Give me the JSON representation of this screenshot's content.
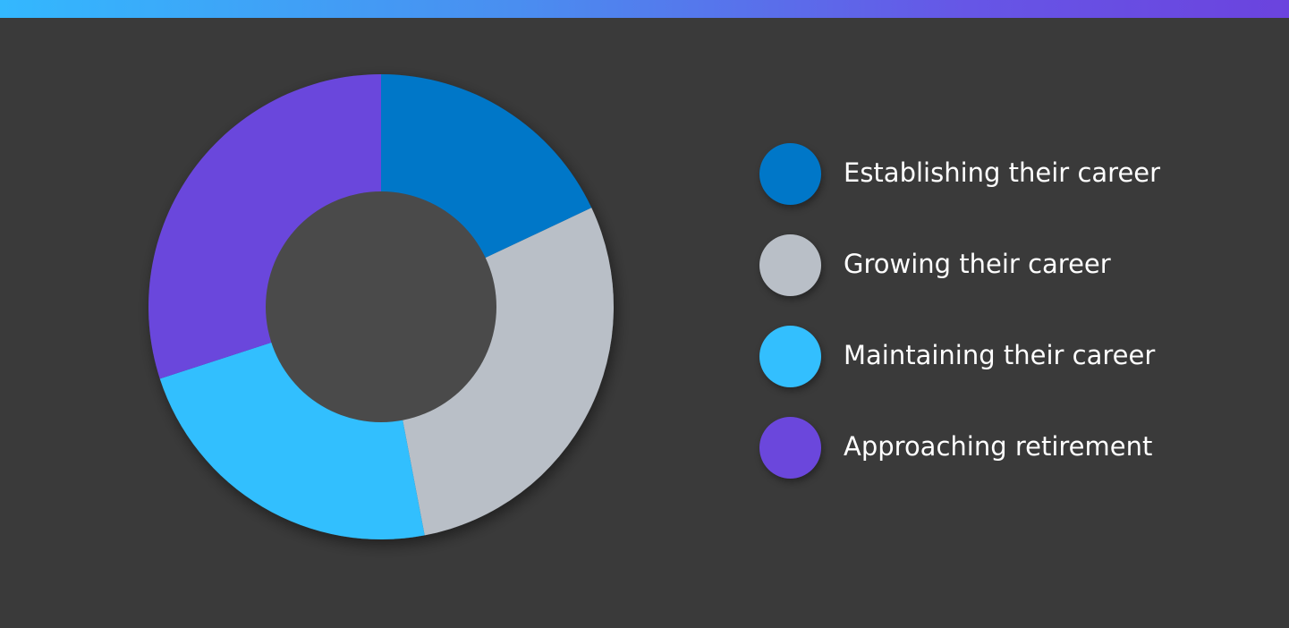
{
  "chart_data": {
    "type": "pie",
    "donut": true,
    "title": "",
    "series": [
      {
        "name": "Establishing their career",
        "value": 18,
        "color": "#0077c8"
      },
      {
        "name": "Growing their career",
        "value": 29,
        "color": "#b9bfc7"
      },
      {
        "name": "Maintaining their career",
        "value": 23,
        "color": "#33bffe"
      },
      {
        "name": "Approaching retirement",
        "value": 30,
        "color": "#6b47dc"
      }
    ],
    "legend_position": "right",
    "center_color": "#4a4a4a",
    "background_color": "#3a3a3a"
  }
}
